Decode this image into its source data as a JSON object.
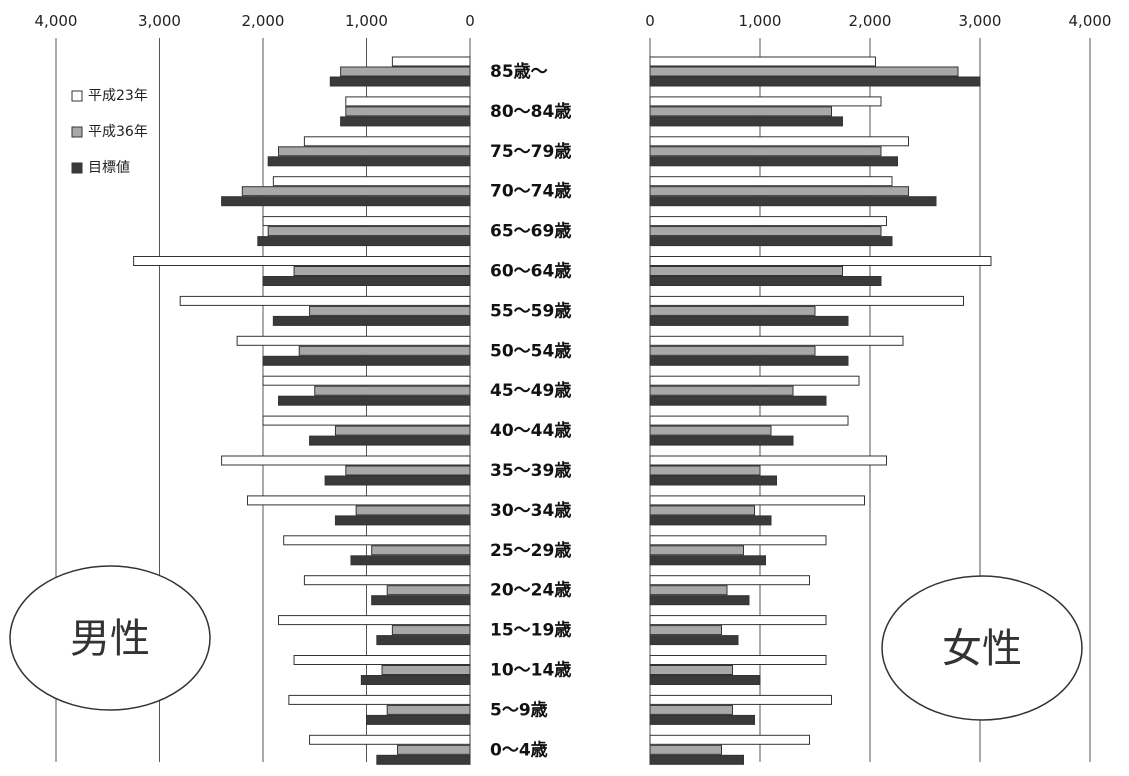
{
  "chart_data": [
    {
      "type": "bar",
      "orientation": "horizontal",
      "direction": "right-to-left",
      "title": "男性",
      "categories": [
        "0〜4歳",
        "5〜9歳",
        "10〜14歳",
        "15〜19歳",
        "20〜24歳",
        "25〜29歳",
        "30〜34歳",
        "35〜39歳",
        "40〜44歳",
        "45〜49歳",
        "50〜54歳",
        "55〜59歳",
        "60〜64歳",
        "65〜69歳",
        "70〜74歳",
        "75〜79歳",
        "80〜84歳",
        "85歳〜"
      ],
      "series": [
        {
          "name": "平成23年",
          "values": [
            1550,
            1750,
            1700,
            1850,
            1600,
            1800,
            2150,
            2400,
            2000,
            2000,
            2250,
            2800,
            3250,
            2000,
            1900,
            1600,
            1200,
            750
          ]
        },
        {
          "name": "平成36年",
          "values": [
            700,
            800,
            850,
            750,
            800,
            950,
            1100,
            1200,
            1300,
            1500,
            1650,
            1550,
            1700,
            1950,
            2200,
            1850,
            1200,
            1250
          ]
        },
        {
          "name": "目標値",
          "values": [
            900,
            1000,
            1050,
            900,
            950,
            1150,
            1300,
            1400,
            1550,
            1850,
            2000,
            1900,
            2000,
            2050,
            2400,
            1950,
            1250,
            1350
          ]
        }
      ],
      "xticks": [
        "4,000",
        "3,000",
        "2,000",
        "1,000",
        "0"
      ],
      "xlim": [
        0,
        4000
      ],
      "legend_position": "top-left"
    },
    {
      "type": "bar",
      "orientation": "horizontal",
      "direction": "left-to-right",
      "title": "女性",
      "categories": [
        "0〜4歳",
        "5〜9歳",
        "10〜14歳",
        "15〜19歳",
        "20〜24歳",
        "25〜29歳",
        "30〜34歳",
        "35〜39歳",
        "40〜44歳",
        "45〜49歳",
        "50〜54歳",
        "55〜59歳",
        "60〜64歳",
        "65〜69歳",
        "70〜74歳",
        "75〜79歳",
        "80〜84歳",
        "85歳〜"
      ],
      "series": [
        {
          "name": "平成23年",
          "values": [
            1450,
            1650,
            1600,
            1600,
            1450,
            1600,
            1950,
            2150,
            1800,
            1900,
            2300,
            2850,
            3100,
            2150,
            2200,
            2350,
            2100,
            2050
          ]
        },
        {
          "name": "平成36年",
          "values": [
            650,
            750,
            750,
            650,
            700,
            850,
            950,
            1000,
            1100,
            1300,
            1500,
            1500,
            1750,
            2100,
            2350,
            2100,
            1650,
            2800
          ]
        },
        {
          "name": "目標値",
          "values": [
            850,
            950,
            1000,
            800,
            900,
            1050,
            1100,
            1150,
            1300,
            1600,
            1800,
            1800,
            2100,
            2200,
            2600,
            2250,
            1750,
            3000
          ]
        }
      ],
      "xticks": [
        "0",
        "1,000",
        "2,000",
        "3,000",
        "4,000"
      ],
      "xlim": [
        0,
        4000
      ]
    }
  ],
  "colors": {
    "s0": "#ffffff",
    "s1": "#a8a8a8",
    "s2": "#3a3a3a",
    "stroke": "#333333"
  }
}
